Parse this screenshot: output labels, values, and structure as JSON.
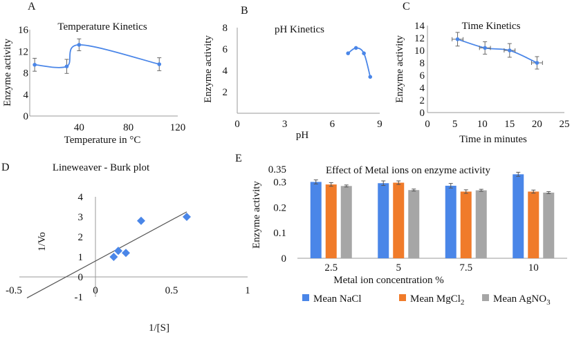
{
  "chart_data": [
    {
      "panel": "A",
      "type": "line",
      "title": "Temperature Kinetics",
      "xlabel": "Temperature in °C",
      "ylabel": "Enzyme activity",
      "xlim": [
        0,
        120
      ],
      "ylim": [
        0,
        16
      ],
      "xticks": [
        40,
        80,
        120
      ],
      "yticks": [
        0,
        4,
        8,
        12,
        16
      ],
      "x": [
        4,
        30,
        40,
        105
      ],
      "y": [
        9.5,
        9.2,
        13.2,
        9.6
      ],
      "yerr": [
        1.2,
        1.3,
        1.1,
        1.2
      ],
      "color": "#4a86e8"
    },
    {
      "panel": "B",
      "type": "line",
      "title": "pH Kinetics",
      "xlabel": "pH",
      "ylabel": "Enzyme activity",
      "xlim": [
        0,
        9
      ],
      "ylim": [
        0,
        8
      ],
      "xticks": [
        0,
        3,
        6,
        9
      ],
      "yticks": [
        2,
        4,
        6,
        8
      ],
      "x": [
        7.0,
        7.5,
        8.0,
        8.4
      ],
      "y": [
        5.6,
        6.1,
        5.6,
        3.4
      ],
      "color": "#4a86e8"
    },
    {
      "panel": "C",
      "type": "line",
      "title": "Time Kinetics",
      "xlabel": "Time in minutes",
      "ylabel": "Enzyme activity",
      "xlim": [
        0,
        25
      ],
      "ylim": [
        0,
        14
      ],
      "xticks": [
        0,
        5,
        10,
        15,
        20,
        25
      ],
      "yticks": [
        0,
        2,
        4,
        6,
        8,
        10,
        12,
        14
      ],
      "x": [
        5.5,
        10.5,
        15,
        20
      ],
      "y": [
        11.8,
        10.4,
        10.0,
        8.0
      ],
      "yerr": [
        1.1,
        1.0,
        1.1,
        1.0
      ],
      "xerr": [
        1.0,
        1.0,
        1.0,
        1.0
      ],
      "color": "#4a86e8"
    },
    {
      "panel": "D",
      "type": "scatter",
      "title": "Lineweaver - Burk plot",
      "xlabel": "1/[S]",
      "ylabel": "1/Vo",
      "xlim": [
        -0.5,
        1
      ],
      "ylim": [
        -1,
        4
      ],
      "xticks": [
        -0.5,
        0,
        0.5,
        1
      ],
      "yticks": [
        -1,
        0,
        1,
        2,
        3,
        4
      ],
      "x": [
        0.12,
        0.15,
        0.2,
        0.3,
        0.6
      ],
      "y": [
        1.0,
        1.3,
        1.2,
        2.8,
        3.0
      ],
      "trendline": {
        "x": [
          -0.45,
          0.6
        ],
        "y": [
          -1.05,
          3.25
        ]
      },
      "color": "#4a86e8"
    },
    {
      "panel": "E",
      "type": "bar",
      "title": "Effect of Metal ions on enzyme activity",
      "xlabel": "Metal ion concentration %",
      "ylabel": "Enzyme activity",
      "categories": [
        "2.5",
        "5",
        "7.5",
        "10"
      ],
      "ylim": [
        0,
        0.35
      ],
      "yticks": [
        0,
        0.1,
        0.2,
        0.3,
        0.35
      ],
      "series": [
        {
          "name": "Mean NaCl",
          "color": "#4a86e8",
          "values": [
            0.3,
            0.295,
            0.285,
            0.33
          ],
          "err": [
            0.008,
            0.009,
            0.009,
            0.008
          ]
        },
        {
          "name": "Mean MgCl2",
          "color": "#f07b2a",
          "values": [
            0.29,
            0.297,
            0.262,
            0.262
          ],
          "err": [
            0.007,
            0.007,
            0.007,
            0.006
          ]
        },
        {
          "name": "Mean AgNO3",
          "color": "#a6a6a6",
          "values": [
            0.284,
            0.268,
            0.267,
            0.258
          ],
          "err": [
            0.004,
            0.004,
            0.004,
            0.004
          ]
        }
      ]
    }
  ],
  "panel_letters": [
    "A",
    "B",
    "C",
    "D",
    "E"
  ],
  "legend_labels": [
    "Mean NaCl",
    "Mean MgCl",
    "Mean AgNO"
  ],
  "legend_subscripts": [
    "",
    "2",
    "3"
  ]
}
